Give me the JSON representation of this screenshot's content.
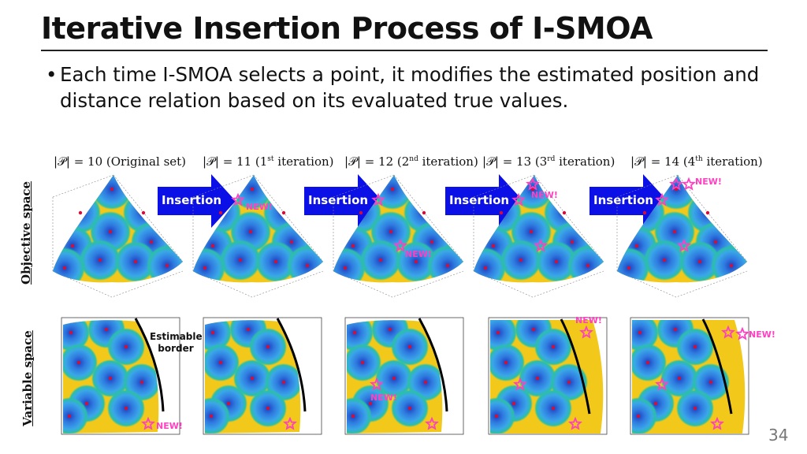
{
  "slide": {
    "title": "Iterative Insertion Process of I-SMOA",
    "bullet_marker": "•",
    "bullet": "Each time I-SMOA selects a point, it modifies the estimated position and distance relation based on its evaluated true values.",
    "page_number": "34"
  },
  "row_labels": {
    "objective": "Objective space",
    "variable": "Variable space"
  },
  "panels": [
    {
      "title_main": "|𝒫| = 10 (Original set)",
      "title_sup": "",
      "title_tail": ""
    },
    {
      "title_main": "|𝒫| = 11 (1",
      "title_sup": "st",
      "title_tail": " iteration)"
    },
    {
      "title_main": "|𝒫| = 12 (2",
      "title_sup": "nd",
      "title_tail": " iteration)"
    },
    {
      "title_main": "|𝒫| = 13 (3",
      "title_sup": "rd",
      "title_tail": " iteration)"
    },
    {
      "title_main": "|𝒫| = 14 (4",
      "title_sup": "th",
      "title_tail": " iteration)"
    }
  ],
  "arrow_label": "Insertion",
  "new_label": "NEW!",
  "estimable_border_label": "Estimable border",
  "colors": {
    "arrow": "#0a10e6",
    "star": "#ff40c0",
    "dot": "#d0103a",
    "border_line": "#000000",
    "map_blue": "#3aa7e8",
    "map_teal": "#2bbfa8",
    "map_yellow": "#f2c81a"
  }
}
